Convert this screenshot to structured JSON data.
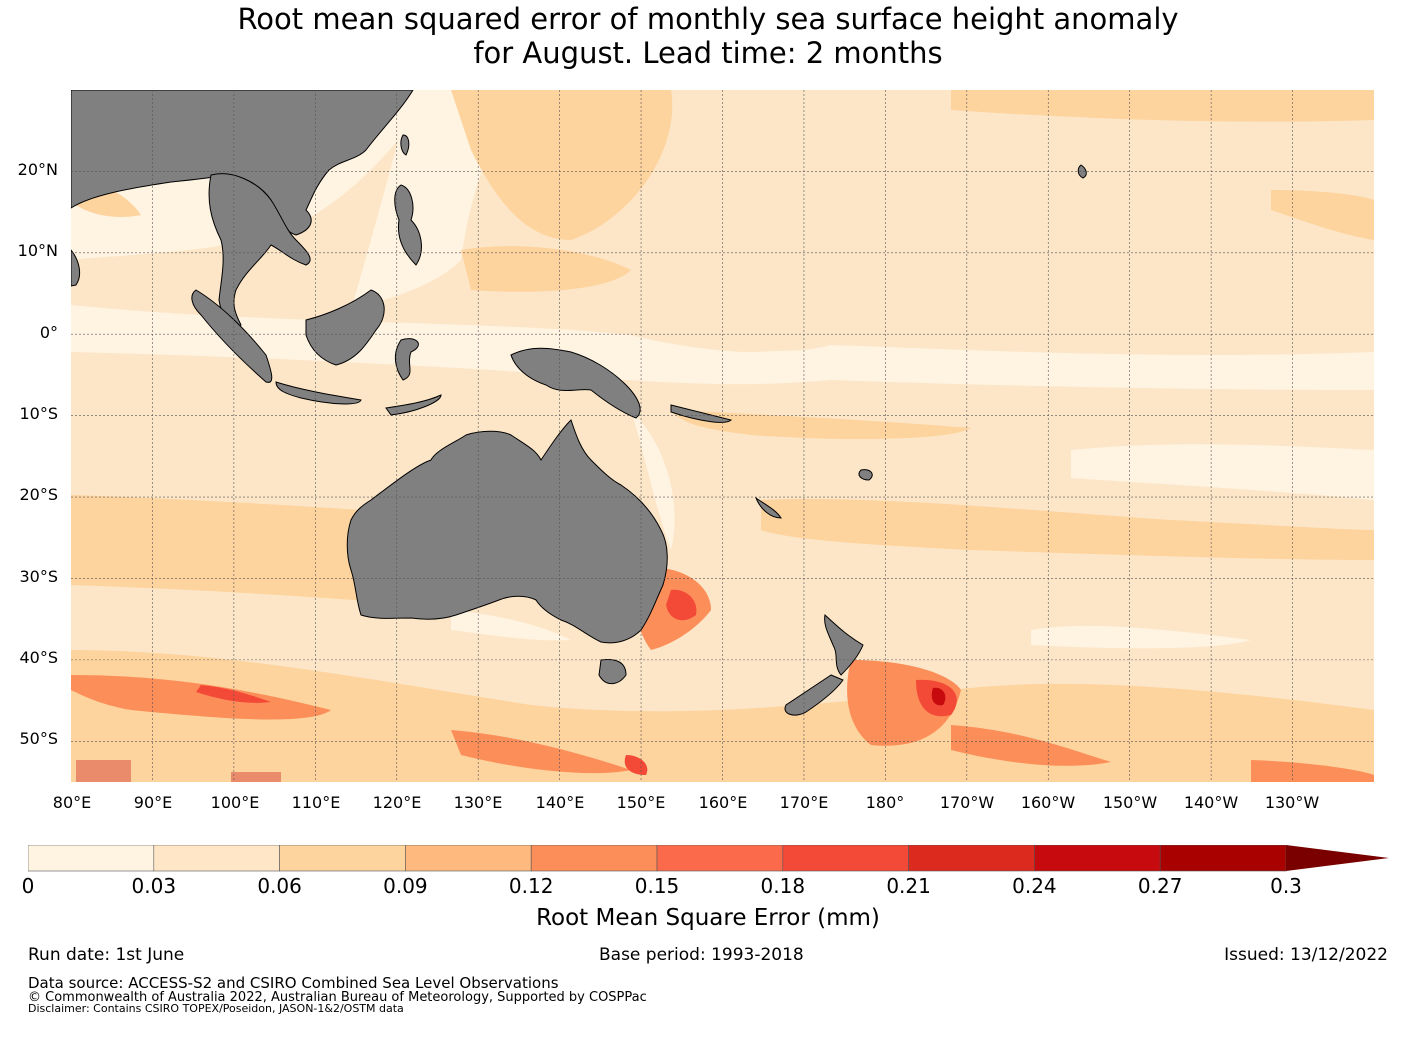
{
  "title": {
    "line1": "Root mean squared error of monthly sea surface height anomaly",
    "line2": "for August. Lead time: 2 months"
  },
  "map": {
    "lat_labels": [
      "20°N",
      "10°N",
      "0°",
      "10°S",
      "20°S",
      "30°S",
      "40°S",
      "50°S"
    ],
    "lon_labels": [
      "80°E",
      "90°E",
      "100°E",
      "110°E",
      "120°E",
      "130°E",
      "140°E",
      "150°E",
      "160°E",
      "170°E",
      "180°",
      "170°W",
      "160°W",
      "150°W",
      "140°W",
      "130°W"
    ],
    "lat_extent": [
      -55,
      30
    ],
    "lon_extent": [
      80,
      240
    ],
    "land_color": "#808080",
    "gridline_color": "#555555"
  },
  "colorbar": {
    "ticks": [
      "0",
      "0.03",
      "0.06",
      "0.09",
      "0.12",
      "0.15",
      "0.18",
      "0.21",
      "0.24",
      "0.27",
      "0.3"
    ],
    "colors": [
      "#fff3e2",
      "#fee6c6",
      "#fdd39e",
      "#fdb97e",
      "#fc8e59",
      "#fb6a4a",
      "#f34a37",
      "#dc2a1f",
      "#c60a0e",
      "#a90000"
    ],
    "extend_color": "#7a0000",
    "label": "Root Mean Square Error (mm)"
  },
  "footer": {
    "run_date": "Run date: 1st June",
    "base_period": "Base period: 1993-2018",
    "issued": "Issued: 13/12/2022",
    "data_source": "Data source: ACCESS-S2 and CSIRO Combined Sea Level Observations",
    "copyright": "© Commonwealth of Australia 2022, Australian Bureau of Meteorology, Supported by COSPPac",
    "disclaimer": "Disclaimer: Contains CSIRO TOPEX/Poseidon, JASON-1&2/OSTM data"
  }
}
